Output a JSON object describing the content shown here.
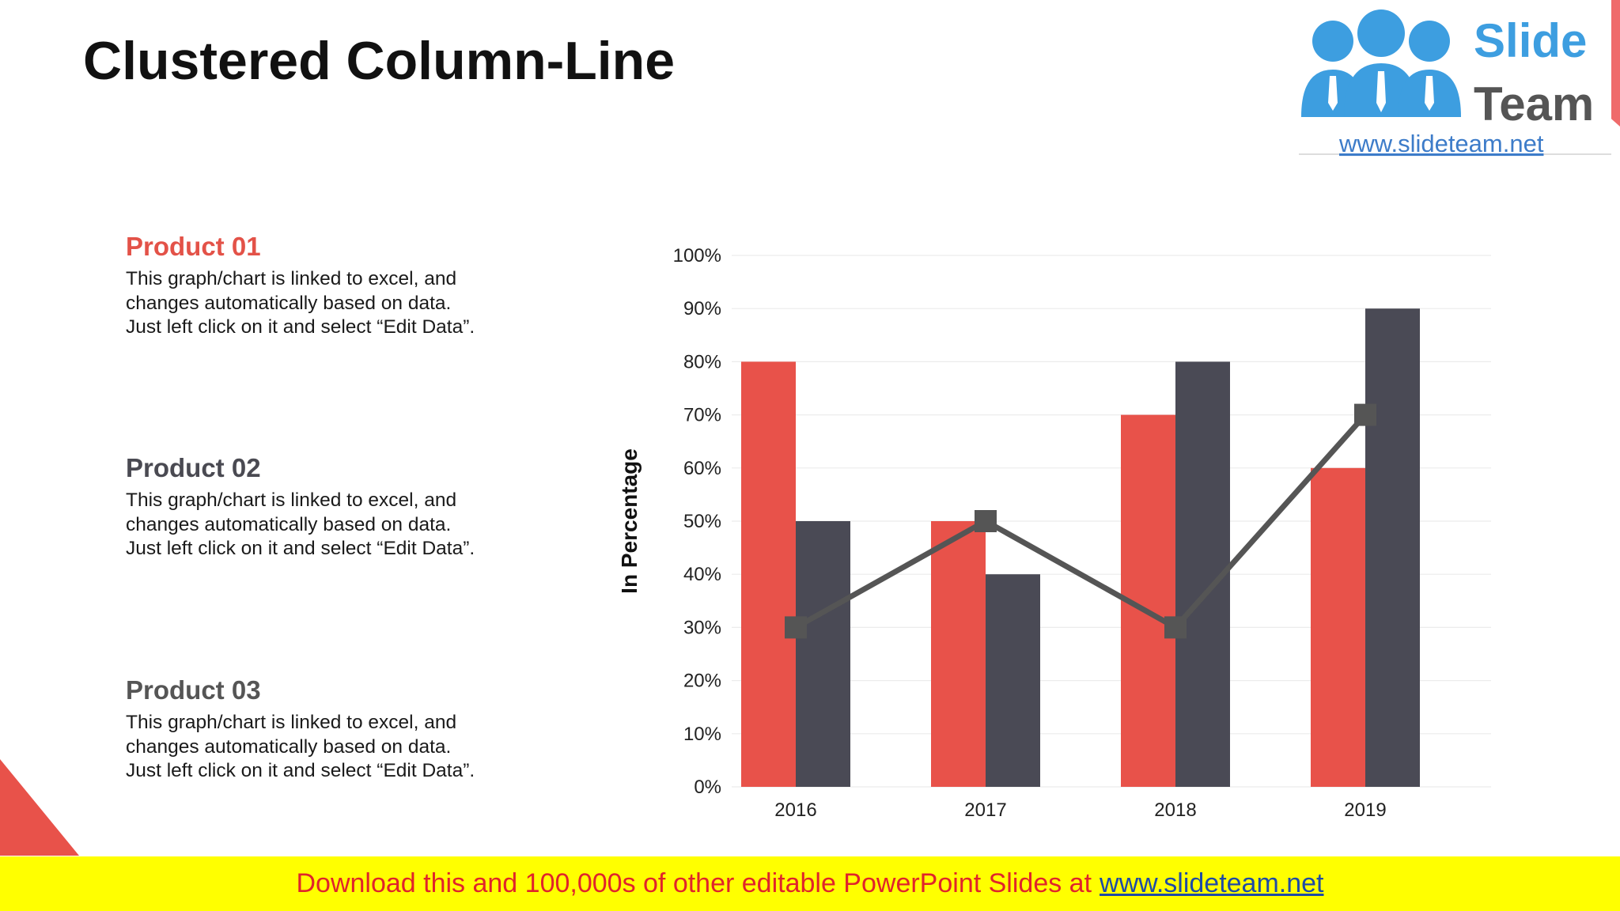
{
  "title": "Clustered Column-Line",
  "logo": {
    "brand_line1": "Slide",
    "brand_line2": "Team",
    "url": "www.slideteam.net"
  },
  "products": [
    {
      "title": "Product 01",
      "color": "#e35248",
      "text_lines": [
        "This graph/chart is linked to excel, and",
        "changes automatically based on data.",
        "Just left click on it and select “Edit Data”."
      ]
    },
    {
      "title": "Product 02",
      "color": "#4a4a52",
      "text_lines": [
        "This graph/chart is linked to excel, and",
        "changes automatically based on data.",
        "Just left click on it and select “Edit Data”."
      ]
    },
    {
      "title": "Product 03",
      "color": "#555555",
      "text_lines": [
        "This graph/chart is linked to excel, and",
        "changes automatically based on data.",
        "Just left click on it and select “Edit Data”."
      ]
    }
  ],
  "chart_data": {
    "type": "bar",
    "title": "",
    "xlabel": "",
    "ylabel": "In Percentage",
    "categories": [
      "2016",
      "2017",
      "2018",
      "2019"
    ],
    "ylim": [
      0,
      100
    ],
    "yticks": [
      "0%",
      "10%",
      "20%",
      "30%",
      "40%",
      "50%",
      "60%",
      "70%",
      "80%",
      "90%",
      "100%"
    ],
    "grid": true,
    "series": [
      {
        "type": "bar",
        "color": "#e8524a",
        "values": [
          80,
          50,
          70,
          60
        ]
      },
      {
        "type": "bar",
        "color": "#4a4a55",
        "values": [
          50,
          40,
          80,
          90
        ]
      },
      {
        "type": "line",
        "color": "#555555",
        "marker": "square",
        "values": [
          30,
          50,
          30,
          70
        ]
      }
    ]
  },
  "banner": {
    "message": "Download this and 100,000s of other editable PowerPoint Slides at",
    "link": "www.slideteam.net"
  },
  "colors": {
    "accent_red": "#e8524a",
    "dark_gray": "#4a4a55",
    "banner_yellow": "#ffff00",
    "logo_blue": "#3d9ee0"
  }
}
